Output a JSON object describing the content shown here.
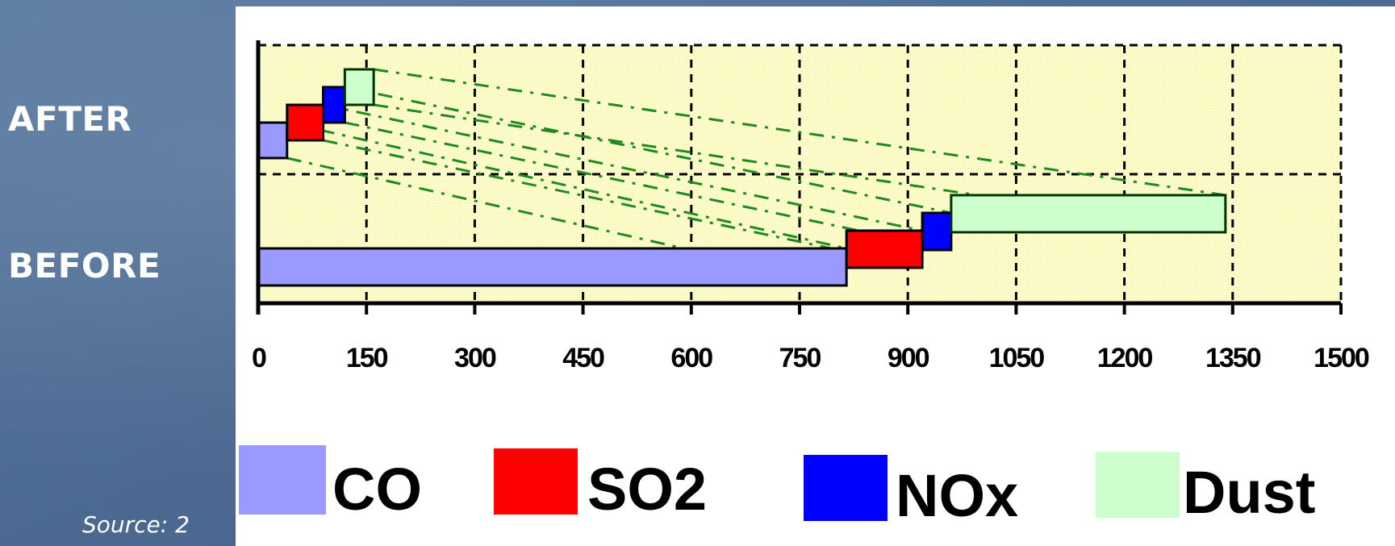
{
  "source_note": "Source: 2",
  "chart_data": {
    "type": "bar",
    "orientation": "horizontal",
    "stacked": true,
    "categories": [
      "AFTER",
      "BEFORE"
    ],
    "series": [
      {
        "name": "CO",
        "values": [
          40,
          815
        ],
        "color": "#9999ff"
      },
      {
        "name": "SO2",
        "values": [
          50,
          105
        ],
        "color": "#ff0000"
      },
      {
        "name": "NOx",
        "values": [
          30,
          40
        ],
        "color": "#0000ff"
      },
      {
        "name": "Dust",
        "values": [
          40,
          380
        ],
        "color": "#ccffcc"
      }
    ],
    "xlim": [
      0,
      1500
    ],
    "x_ticks": [
      "0",
      "150",
      "300",
      "450",
      "600",
      "750",
      "900",
      "1050",
      "1200",
      "1350",
      "1500"
    ],
    "grid": true,
    "legend_position": "bottom",
    "plot_background": "#ffffcc",
    "connector_color": "#1f8a1f"
  }
}
